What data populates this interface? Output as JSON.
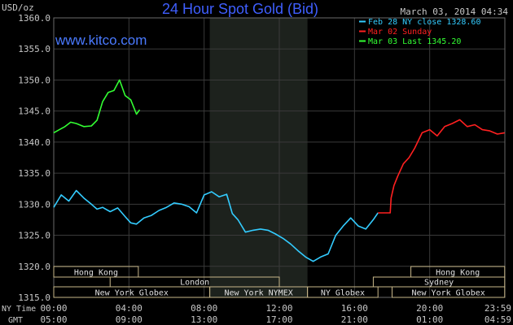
{
  "header": {
    "unit_label": "USD/oz",
    "title": "24 Hour Spot Gold (Bid)",
    "date_label": "March 03, 2014 04:34",
    "watermark": "www.kitco.com"
  },
  "legend": [
    {
      "label": "Feb 28 NY close 1328.60",
      "color": "#33ccff"
    },
    {
      "label": "Mar 02 Sunday",
      "color": "#ff2020"
    },
    {
      "label": "Mar 03 Last 1345.20",
      "color": "#33ff33"
    }
  ],
  "time_axis": {
    "row1_label": "NY Time",
    "row2_label": "GMT",
    "ny_ticks": [
      "00:00",
      "04:00",
      "08:00",
      "12:00",
      "16:00",
      "20:00",
      "23:59"
    ],
    "gmt_ticks": [
      "05:00",
      "09:00",
      "13:00",
      "17:00",
      "21:00",
      "01:00",
      "04:59"
    ]
  },
  "sessions": {
    "row1": [
      {
        "label": "Hong Kong",
        "start": 0,
        "end": 4.5
      },
      {
        "label": "Hong Kong",
        "start": 19,
        "end": 23.99
      }
    ],
    "row2": [
      {
        "label": "London",
        "start": 3,
        "end": 12
      },
      {
        "label": "Sydney",
        "start": 17,
        "end": 23.99
      }
    ],
    "row3": [
      {
        "label": "New York Globex",
        "start": 0,
        "end": 8.3
      },
      {
        "label": "New York NYMEX",
        "start": 8.3,
        "end": 13.5
      },
      {
        "label": "NY Globex",
        "start": 13.5,
        "end": 17.25
      },
      {
        "label": "New York Globex",
        "start": 18,
        "end": 23.99
      }
    ]
  },
  "colors": {
    "background": "#000000",
    "grid": "#3a3a3a",
    "axis": "#c8c8c8",
    "title": "#3f5fff",
    "watermark": "#4a7aff",
    "shade": "#1d221d",
    "session_border": "#c8b78a"
  },
  "chart_data": {
    "type": "line",
    "title": "24 Hour Spot Gold (Bid)",
    "ylabel": "USD/oz",
    "ylim": [
      1315,
      1360
    ],
    "y_ticks": [
      1315.0,
      1320.0,
      1325.0,
      1330.0,
      1335.0,
      1340.0,
      1345.0,
      1350.0,
      1355.0,
      1360.0
    ],
    "xlim": [
      0,
      24
    ],
    "x_unit": "NY Time hours",
    "shaded_region": [
      8.3,
      13.5
    ],
    "grid": true,
    "legend_position": "top-right",
    "series": [
      {
        "name": "Feb 28 NY close 1328.60",
        "color": "#33ccff",
        "x": [
          0,
          0.4,
          0.8,
          1.2,
          1.6,
          2.0,
          2.3,
          2.6,
          3.0,
          3.4,
          3.8,
          4.1,
          4.4,
          4.8,
          5.2,
          5.6,
          6.0,
          6.4,
          6.8,
          7.2,
          7.6,
          8.0,
          8.4,
          8.8,
          9.2,
          9.5,
          9.8,
          10.2,
          10.6,
          11.0,
          11.4,
          11.8,
          12.2,
          12.6,
          13.0,
          13.4,
          13.8,
          14.2,
          14.6,
          15.0,
          15.4,
          15.8,
          16.2,
          16.6,
          17.0,
          17.25
        ],
        "y": [
          1329.5,
          1331.5,
          1330.5,
          1332.2,
          1331.0,
          1330.0,
          1329.2,
          1329.5,
          1328.8,
          1329.4,
          1328.0,
          1327.0,
          1326.8,
          1327.8,
          1328.2,
          1329.0,
          1329.5,
          1330.2,
          1330.0,
          1329.6,
          1328.6,
          1331.5,
          1332.0,
          1331.2,
          1331.6,
          1328.5,
          1327.5,
          1325.5,
          1325.8,
          1326.0,
          1325.8,
          1325.2,
          1324.5,
          1323.6,
          1322.5,
          1321.5,
          1320.8,
          1321.5,
          1322.0,
          1325.0,
          1326.5,
          1327.8,
          1326.5,
          1326.0,
          1327.5,
          1328.6
        ]
      },
      {
        "name": "Mar 02 Sunday",
        "color": "#ff2020",
        "x": [
          17.25,
          17.9,
          17.95,
          18.1,
          18.3,
          18.6,
          18.9,
          19.2,
          19.6,
          20.0,
          20.4,
          20.8,
          21.2,
          21.6,
          22.0,
          22.4,
          22.8,
          23.2,
          23.6,
          23.99
        ],
        "y": [
          1328.6,
          1328.6,
          1331.0,
          1333.0,
          1334.5,
          1336.5,
          1337.5,
          1339.0,
          1341.5,
          1342.0,
          1341.0,
          1342.5,
          1343.0,
          1343.6,
          1342.5,
          1342.8,
          1342.0,
          1341.8,
          1341.3,
          1341.5
        ]
      },
      {
        "name": "Mar 03 Last 1345.20",
        "color": "#33ff33",
        "x": [
          0,
          0.3,
          0.6,
          0.9,
          1.2,
          1.6,
          2.0,
          2.3,
          2.6,
          2.9,
          3.2,
          3.5,
          3.8,
          4.1,
          4.4,
          4.57
        ],
        "y": [
          1341.5,
          1342.0,
          1342.5,
          1343.2,
          1343.0,
          1342.5,
          1342.6,
          1343.5,
          1346.5,
          1348.0,
          1348.3,
          1350.0,
          1347.5,
          1346.8,
          1344.5,
          1345.2
        ]
      }
    ]
  }
}
